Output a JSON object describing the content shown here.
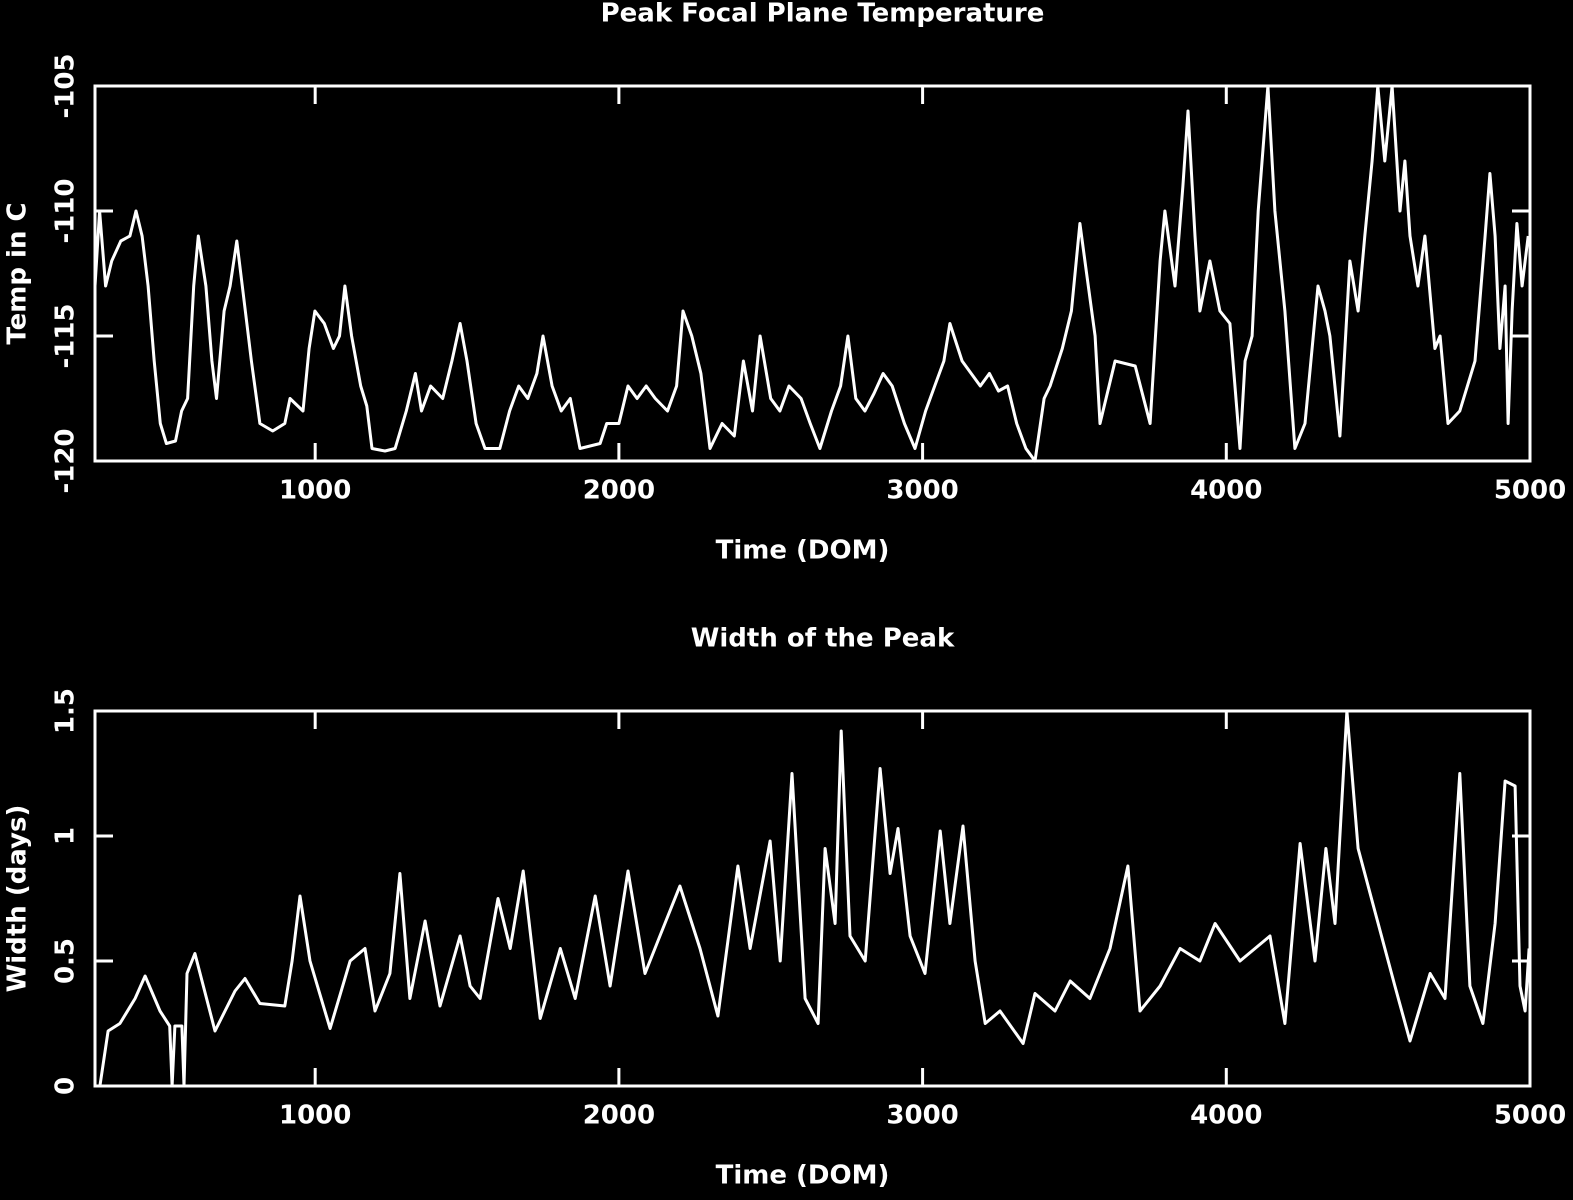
{
  "chart_data": [
    {
      "type": "line",
      "title": "Peak Focal Plane Temperature",
      "xlabel": "Time (DOM)",
      "ylabel": "Temp in C",
      "color": "#ffffff",
      "xlim": [
        275,
        5000
      ],
      "xticks": [
        1000,
        2000,
        3000,
        4000,
        5000
      ],
      "ylim": [
        -120,
        -105
      ],
      "yticks": [
        -120,
        -115,
        -110,
        -105
      ],
      "x": [
        275,
        290,
        310,
        330,
        360,
        390,
        410,
        430,
        450,
        470,
        490,
        510,
        540,
        560,
        580,
        600,
        615,
        640,
        660,
        675,
        700,
        720,
        742,
        760,
        790,
        818,
        860,
        900,
        917,
        960,
        980,
        999,
        1030,
        1060,
        1080,
        1098,
        1120,
        1150,
        1170,
        1187,
        1230,
        1263,
        1300,
        1330,
        1350,
        1380,
        1420,
        1450,
        1477,
        1500,
        1530,
        1559,
        1608,
        1640,
        1670,
        1700,
        1730,
        1750,
        1780,
        1810,
        1840,
        1872,
        1938,
        1960,
        2000,
        2030,
        2060,
        2090,
        2120,
        2160,
        2190,
        2211,
        2240,
        2270,
        2300,
        2340,
        2380,
        2410,
        2440,
        2465,
        2500,
        2530,
        2560,
        2600,
        2630,
        2662,
        2700,
        2730,
        2754,
        2780,
        2810,
        2840,
        2870,
        2900,
        2940,
        2975,
        3010,
        3040,
        3070,
        3090,
        3130,
        3160,
        3190,
        3220,
        3250,
        3280,
        3310,
        3340,
        3370,
        3400,
        3420,
        3460,
        3490,
        3518,
        3540,
        3568,
        3584,
        3634,
        3700,
        3749,
        3782,
        3798,
        3831,
        3857,
        3874,
        3897,
        3913,
        3946,
        3979,
        4012,
        4045,
        4062,
        4085,
        4105,
        4137,
        4160,
        4193,
        4226,
        4259,
        4302,
        4325,
        4341,
        4374,
        4407,
        4434,
        4456,
        4480,
        4499,
        4522,
        4546,
        4572,
        4588,
        4605,
        4631,
        4654,
        4687,
        4704,
        4730,
        4769,
        4819,
        4852,
        4868,
        4885,
        4901,
        4918,
        4928,
        4941,
        4957,
        4974,
        4994
      ],
      "values": [
        -113,
        -110,
        -113,
        -112,
        -111.2,
        -111,
        -110,
        -111,
        -113,
        -116,
        -118.5,
        -119.3,
        -119.2,
        -118,
        -117.5,
        -113,
        -111,
        -113,
        -116,
        -117.5,
        -114,
        -113,
        -111.2,
        -113,
        -116,
        -118.5,
        -118.8,
        -118.5,
        -117.5,
        -118,
        -115.5,
        -114,
        -114.5,
        -115.5,
        -115,
        -113,
        -115,
        -117,
        -117.8,
        -119.5,
        -119.6,
        -119.5,
        -118,
        -116.5,
        -118,
        -117,
        -117.5,
        -116,
        -114.5,
        -116,
        -118.5,
        -119.5,
        -119.5,
        -118,
        -117,
        -117.5,
        -116.5,
        -115,
        -117,
        -118,
        -117.5,
        -119.5,
        -119.3,
        -118.5,
        -118.5,
        -117,
        -117.5,
        -117,
        -117.5,
        -118,
        -117,
        -114,
        -115,
        -116.5,
        -119.5,
        -118.5,
        -119,
        -116,
        -118,
        -115,
        -117.5,
        -118,
        -117,
        -117.5,
        -118.5,
        -119.5,
        -118,
        -117,
        -115,
        -117.5,
        -118,
        -117.3,
        -116.5,
        -117,
        -118.5,
        -119.5,
        -118,
        -117,
        -116,
        -114.5,
        -116,
        -116.5,
        -117,
        -116.5,
        -117.2,
        -117,
        -118.5,
        -119.5,
        -120,
        -117.5,
        -117,
        -115.5,
        -114,
        -110.5,
        -112.5,
        -115,
        -118.5,
        -116,
        -116.2,
        -118.5,
        -112,
        -110,
        -113,
        -109,
        -106,
        -111,
        -114,
        -112,
        -114,
        -114.5,
        -119.5,
        -116,
        -115,
        -110,
        -105,
        -110,
        -114,
        -119.5,
        -118.5,
        -113,
        -114,
        -115,
        -119,
        -112,
        -114,
        -111,
        -108,
        -105,
        -108,
        -105,
        -110,
        -108,
        -111,
        -113,
        -111,
        -115.5,
        -115,
        -118.5,
        -118,
        -116,
        -111,
        -108.5,
        -111,
        -115.5,
        -113,
        -118.5,
        -114,
        -110.5,
        -113,
        -111
      ]
    },
    {
      "type": "line",
      "title": "Width of the Peak",
      "xlabel": "Time (DOM)",
      "ylabel": "Width (days)",
      "color": "#ffffff",
      "xlim": [
        275,
        5000
      ],
      "xticks": [
        1000,
        2000,
        3000,
        4000,
        5000
      ],
      "ylim": [
        0,
        1.5
      ],
      "yticks": [
        0,
        0.5,
        1,
        1.5
      ],
      "x": [
        291,
        318,
        357,
        407,
        440,
        489,
        521,
        529,
        538,
        561,
        568,
        578,
        604,
        670,
        736,
        769,
        818,
        900,
        924,
        950,
        983,
        1049,
        1115,
        1164,
        1197,
        1246,
        1279,
        1312,
        1362,
        1411,
        1477,
        1510,
        1543,
        1602,
        1642,
        1685,
        1741,
        1807,
        1856,
        1922,
        1971,
        2030,
        2086,
        2135,
        2201,
        2267,
        2326,
        2392,
        2432,
        2498,
        2531,
        2570,
        2613,
        2656,
        2679,
        2712,
        2732,
        2761,
        2811,
        2860,
        2893,
        2919,
        2959,
        3008,
        3058,
        3090,
        3133,
        3173,
        3206,
        3255,
        3331,
        3370,
        3436,
        3486,
        3551,
        3617,
        3676,
        3716,
        3782,
        3848,
        3913,
        3963,
        4045,
        4144,
        4193,
        4243,
        4292,
        4328,
        4358,
        4397,
        4434,
        4489,
        4555,
        4605,
        4671,
        4720,
        4769,
        4802,
        4845,
        4885,
        4918,
        4951,
        4967,
        4984,
        4997
      ],
      "values": [
        0,
        0.22,
        0.25,
        0.35,
        0.44,
        0.3,
        0.24,
        0,
        0.24,
        0.24,
        0,
        0.45,
        0.53,
        0.22,
        0.38,
        0.43,
        0.33,
        0.32,
        0.5,
        0.76,
        0.5,
        0.23,
        0.5,
        0.55,
        0.3,
        0.45,
        0.85,
        0.35,
        0.66,
        0.32,
        0.6,
        0.4,
        0.35,
        0.75,
        0.55,
        0.86,
        0.27,
        0.55,
        0.35,
        0.76,
        0.4,
        0.86,
        0.45,
        0.6,
        0.8,
        0.55,
        0.28,
        0.88,
        0.55,
        0.98,
        0.5,
        1.25,
        0.35,
        0.25,
        0.95,
        0.65,
        1.42,
        0.6,
        0.5,
        1.27,
        0.85,
        1.03,
        0.6,
        0.45,
        1.02,
        0.65,
        1.04,
        0.5,
        0.25,
        0.3,
        0.17,
        0.37,
        0.3,
        0.42,
        0.35,
        0.55,
        0.88,
        0.3,
        0.4,
        0.55,
        0.5,
        0.65,
        0.5,
        0.6,
        0.25,
        0.97,
        0.5,
        0.95,
        0.65,
        1.5,
        0.95,
        0.7,
        0.4,
        0.18,
        0.45,
        0.35,
        1.25,
        0.4,
        0.25,
        0.65,
        1.22,
        1.2,
        0.4,
        0.3,
        0.55
      ]
    }
  ]
}
